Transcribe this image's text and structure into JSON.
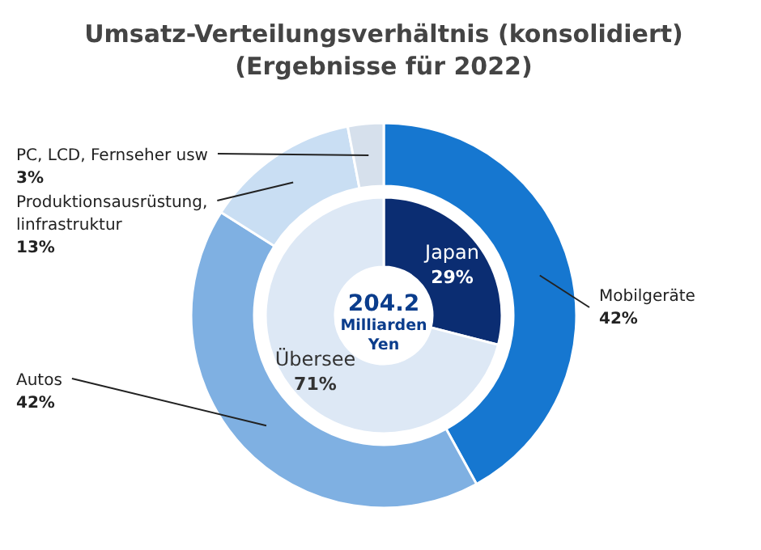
{
  "chart_data": [
    {
      "type": "donut",
      "title": "Umsatz-Verteilungsverhältnis (konsolidiert)\n(Ergebnisse für 2022)",
      "categories": [
        "Mobilgeräte",
        "Autos",
        "Produktionsausrüstung, linfrastruktur",
        "PC, LCD, Fernseher usw"
      ],
      "values": [
        42,
        42,
        13,
        3
      ],
      "colors": [
        "#1677d0",
        "#7fb0e2",
        "#c9def3",
        "#d6e0ec"
      ],
      "value_labels": [
        "42%",
        "42%",
        "13%",
        "3%"
      ],
      "annotations": [
        "204.2",
        "Milliarden Yen"
      ]
    },
    {
      "type": "donut",
      "categories": [
        "Japan",
        "Übersee"
      ],
      "values": [
        29,
        71
      ],
      "colors": [
        "#0b2d72",
        "#dde8f5"
      ],
      "value_labels": [
        "29%",
        "71%"
      ]
    }
  ]
}
